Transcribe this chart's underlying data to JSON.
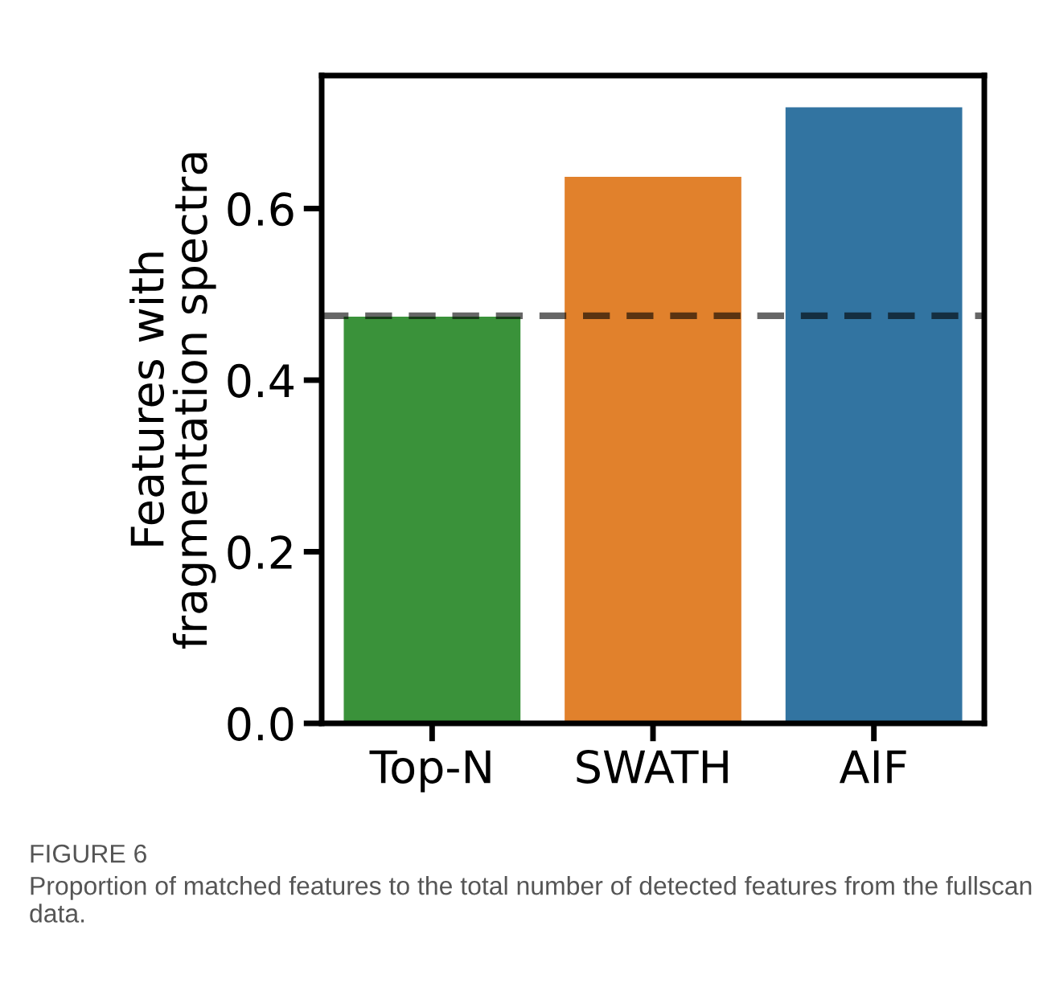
{
  "chart_data": {
    "type": "bar",
    "ylabel": "Features with\nfragmentation spectra",
    "categories": [
      "Top-N",
      "SWATH",
      "AIF"
    ],
    "values": [
      0.474,
      0.637,
      0.718
    ],
    "colors": [
      "#3a923a",
      "#e1812c",
      "#3274a1"
    ],
    "ylim": [
      0,
      0.755
    ],
    "yticks": [
      {
        "value": 0,
        "label": "0.0"
      },
      {
        "value": 0.2,
        "label": "0.2"
      },
      {
        "value": 0.4,
        "label": "0.4"
      },
      {
        "value": 0.6,
        "label": "0.6"
      }
    ],
    "ref_lines": [
      {
        "axis": "y",
        "value": 0.475,
        "color": "#000000",
        "line_style": "dashed"
      }
    ],
    "grid": false,
    "legend": false,
    "annotations": [
      "FIGURE 6",
      "Proportion of matched features to the total number of detected features from the fullscan data."
    ]
  }
}
